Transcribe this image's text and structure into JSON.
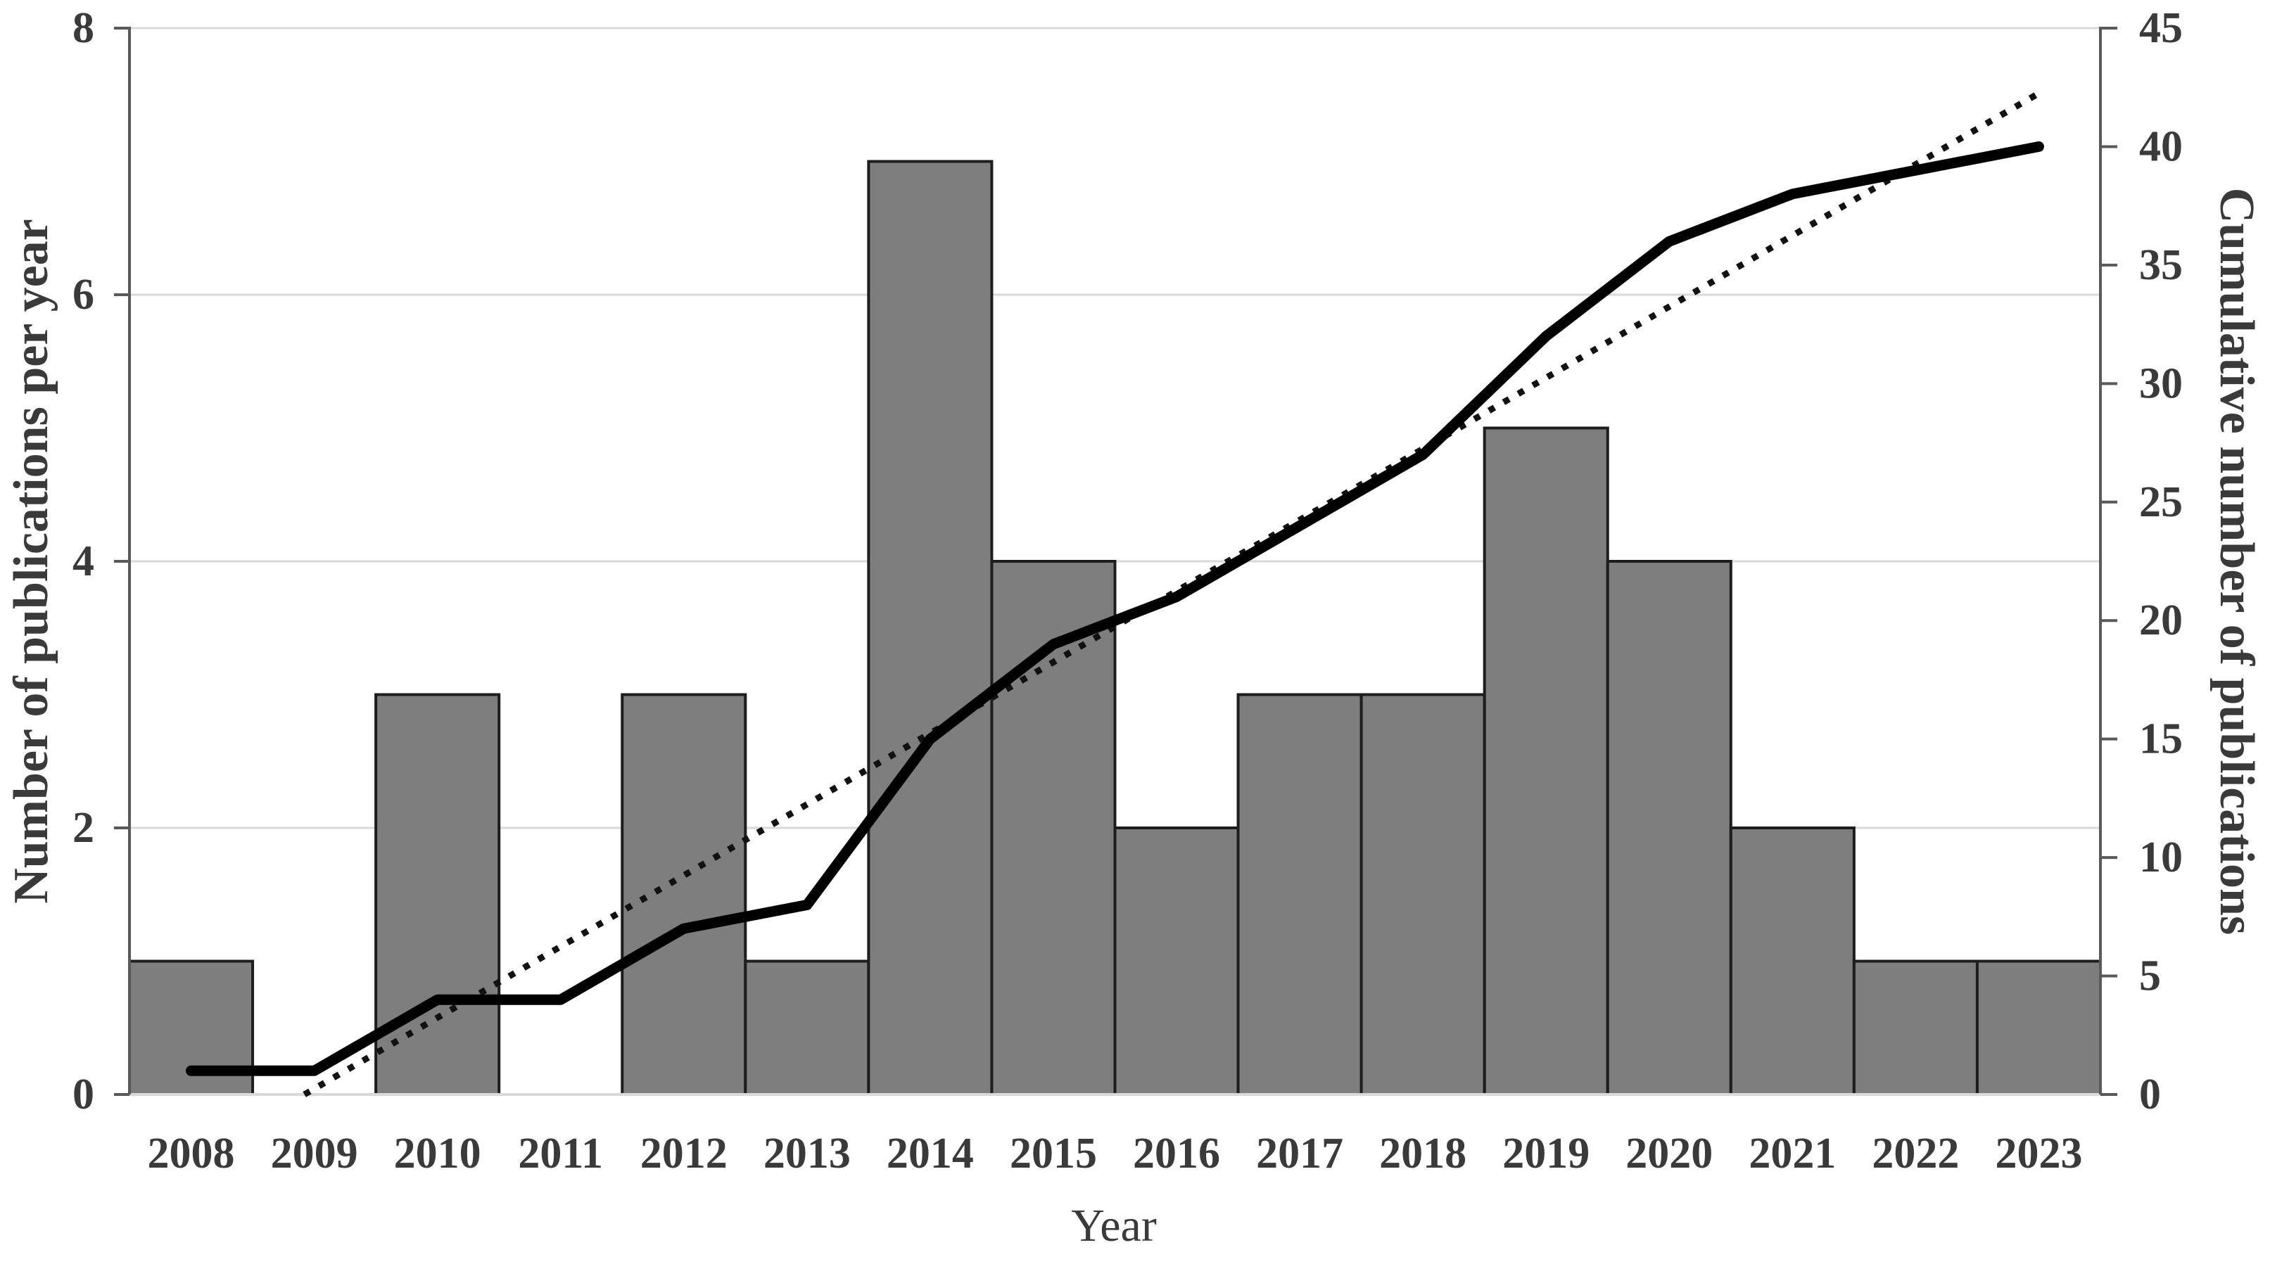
{
  "chart_data": {
    "type": "bar",
    "subtype": "bar-with-cumulative-line-and-trendline",
    "title": "",
    "categories": [
      "2008",
      "2009",
      "2010",
      "2011",
      "2012",
      "2013",
      "2014",
      "2015",
      "2016",
      "2017",
      "2018",
      "2019",
      "2020",
      "2021",
      "2022",
      "2023"
    ],
    "series": [
      {
        "name": "Number of publications per year",
        "type": "bar",
        "axis": "left",
        "values": [
          1,
          0,
          3,
          0,
          3,
          1,
          7,
          4,
          2,
          3,
          3,
          5,
          4,
          2,
          1,
          1
        ]
      },
      {
        "name": "Cumulative number of publications",
        "type": "line",
        "axis": "right",
        "values": [
          1,
          1,
          4,
          4,
          7,
          8,
          15,
          19,
          21,
          24,
          27,
          32,
          36,
          38,
          39,
          40
        ]
      },
      {
        "name": "Linear trendline of cumulative publications",
        "type": "dotted-trendline",
        "axis": "right",
        "endpoints_year_value": [
          [
            2008.92,
            0
          ],
          [
            2023.0,
            42.25
          ]
        ]
      }
    ],
    "xlabel": "Year",
    "left_axis": {
      "label": "Number of publications per year",
      "min": 0,
      "max": 8,
      "step": 2,
      "ticks": [
        0,
        2,
        4,
        6,
        8
      ]
    },
    "right_axis": {
      "label": "Cumulative number of publications",
      "min": 0,
      "max": 45,
      "step": 5,
      "ticks": [
        0,
        5,
        10,
        15,
        20,
        25,
        30,
        35,
        40,
        45
      ]
    },
    "grid": "horizontal lines at left-axis steps 2,4,6,8",
    "legend": "none"
  },
  "colors": {
    "bar_fill": "#7e7e7e",
    "bar_border": "#1d1d1d",
    "cumulative_line": "#000000",
    "trendline": "#111111",
    "gridline": "#d9d9d9",
    "axis_line": "#595959",
    "bottom_axis_line": "#d9d9d9",
    "tick_text": "#3a3a3a",
    "background": "#ffffff"
  }
}
